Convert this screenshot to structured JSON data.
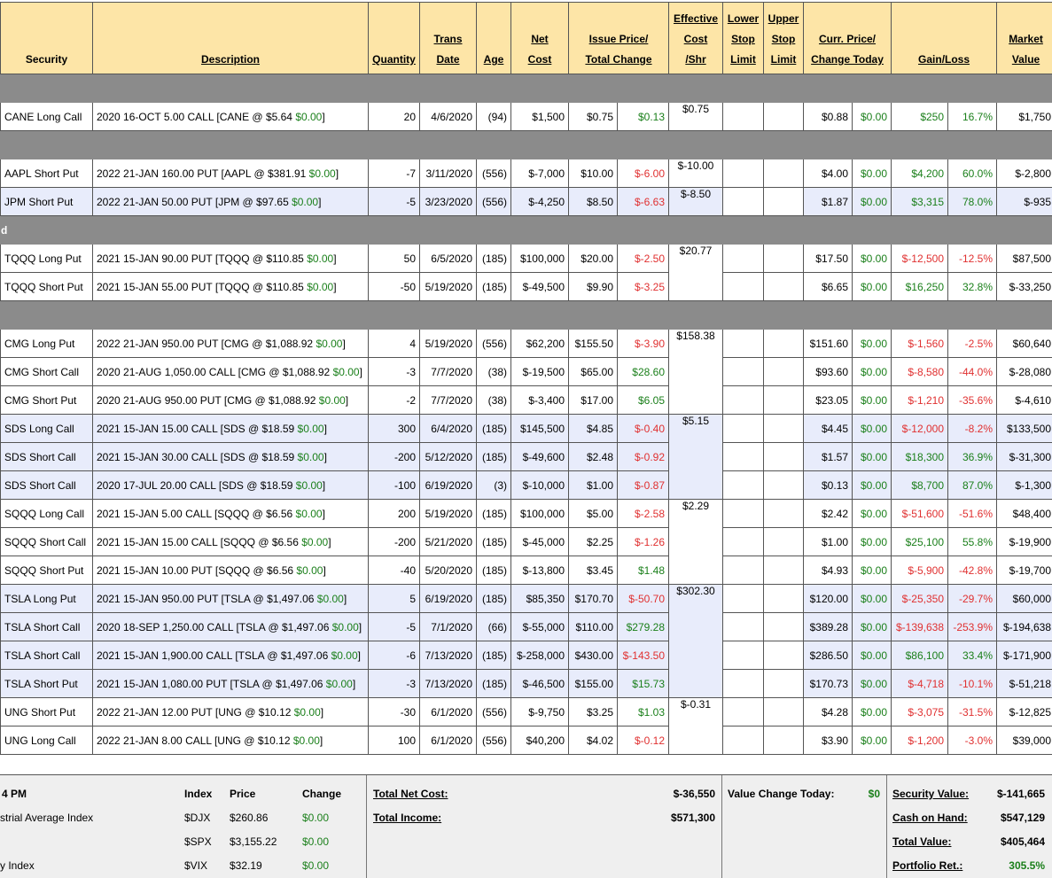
{
  "headers": [
    {
      "label": "Security",
      "underline": false
    },
    {
      "label": "Description",
      "underline": true
    },
    {
      "label": "Quantity",
      "underline": true
    },
    {
      "label": "Trans\nDate",
      "underline": true
    },
    {
      "label": "Age",
      "underline": true
    },
    {
      "label": "Net\nCost",
      "underline": true
    },
    {
      "label": "Issue Price/\nTotal Change",
      "underline": true
    },
    {
      "label": "Effective\nCost\n/Shr",
      "underline": true
    },
    {
      "label": "Lower\nStop\nLimit",
      "underline": true
    },
    {
      "label": "Upper\nStop\nLimit",
      "underline": true
    },
    {
      "label": "Curr. Price/\nChange Today",
      "underline": true
    },
    {
      "label": "Gain/Loss",
      "underline": true
    },
    {
      "label": "Market\nValue",
      "underline": true
    }
  ],
  "sections": [
    {
      "label": "",
      "rows": [
        {
          "sec": "CANE Long Call",
          "desc": "2020 16-OCT 5.00 CALL [CANE @ $5.64 ",
          "desc_chg": "$0.00",
          "qty": "20",
          "date": "4/6/2020",
          "age": "(94)",
          "net": "$1,500",
          "issue": "$0.75",
          "tchg": "$0.13",
          "tchg_c": "g",
          "eff": "$0.75",
          "cur": "$0.88",
          "today": "$0.00",
          "gain": "$250",
          "gain_c": "g",
          "pct": "16.7%",
          "pct_c": "g",
          "mv": "$1,750",
          "alt": false
        }
      ]
    },
    {
      "label": "",
      "rows": [
        {
          "sec": "AAPL Short Put",
          "desc": "2022 21-JAN 160.00 PUT [AAPL @ $381.91 ",
          "desc_chg": "$0.00",
          "qty": "-7",
          "date": "3/11/2020",
          "age": "(556)",
          "net": "$-7,000",
          "issue": "$10.00",
          "tchg": "$-6.00",
          "tchg_c": "red",
          "eff": "$-10.00",
          "cur": "$4.00",
          "today": "$0.00",
          "gain": "$4,200",
          "gain_c": "g",
          "pct": "60.0%",
          "pct_c": "g",
          "mv": "$-2,800",
          "alt": false
        },
        {
          "sec": "JPM Short Put",
          "desc": "2022 21-JAN 50.00 PUT [JPM @ $97.65 ",
          "desc_chg": "$0.00",
          "qty": "-5",
          "date": "3/23/2020",
          "age": "(556)",
          "net": "$-4,250",
          "issue": "$8.50",
          "tchg": "$-6.63",
          "tchg_c": "red",
          "eff": "$-8.50",
          "cur": "$1.87",
          "today": "$0.00",
          "gain": "$3,315",
          "gain_c": "g",
          "pct": "78.0%",
          "pct_c": "g",
          "mv": "$-935",
          "alt": true
        }
      ]
    },
    {
      "label": "d",
      "rows": [
        {
          "sec": "TQQQ Long Put",
          "desc": "2021 15-JAN 90.00 PUT [TQQQ @ $110.85 ",
          "desc_chg": "$0.00",
          "qty": "50",
          "date": "6/5/2020",
          "age": "(185)",
          "net": "$100,000",
          "issue": "$20.00",
          "tchg": "$-2.50",
          "tchg_c": "red",
          "eff": "$20.77",
          "cur": "$17.50",
          "today": "$0.00",
          "gain": "$-12,500",
          "gain_c": "red",
          "pct": "-12.5%",
          "pct_c": "red",
          "mv": "$87,500",
          "alt": false,
          "span": 2
        },
        {
          "sec": "TQQQ Short Put",
          "desc": "2021 15-JAN 55.00 PUT [TQQQ @ $110.85 ",
          "desc_chg": "$0.00",
          "qty": "-50",
          "date": "5/19/2020",
          "age": "(185)",
          "net": "$-49,500",
          "issue": "$9.90",
          "tchg": "$-3.25",
          "tchg_c": "red",
          "eff": null,
          "cur": "$6.65",
          "today": "$0.00",
          "gain": "$16,250",
          "gain_c": "g",
          "pct": "32.8%",
          "pct_c": "g",
          "mv": "$-33,250",
          "alt": false
        }
      ]
    },
    {
      "label": "",
      "rows": [
        {
          "sec": "CMG Long Put",
          "desc": "2022 21-JAN 950.00 PUT [CMG @ $1,088.92 ",
          "desc_chg": "$0.00",
          "qty": "4",
          "date": "5/19/2020",
          "age": "(556)",
          "net": "$62,200",
          "issue": "$155.50",
          "tchg": "$-3.90",
          "tchg_c": "red",
          "eff": "$158.38",
          "cur": "$151.60",
          "today": "$0.00",
          "gain": "$-1,560",
          "gain_c": "red",
          "pct": "-2.5%",
          "pct_c": "red",
          "mv": "$60,640",
          "alt": false,
          "span": 3
        },
        {
          "sec": "CMG Short Call",
          "desc": "2020 21-AUG 1,050.00 CALL [CMG @ $1,088.92 ",
          "desc_chg": "$0.00",
          "qty": "-3",
          "date": "7/7/2020",
          "age": "(38)",
          "net": "$-19,500",
          "issue": "$65.00",
          "tchg": "$28.60",
          "tchg_c": "g",
          "eff": null,
          "cur": "$93.60",
          "today": "$0.00",
          "gain": "$-8,580",
          "gain_c": "red",
          "pct": "-44.0%",
          "pct_c": "red",
          "mv": "$-28,080",
          "alt": false
        },
        {
          "sec": "CMG Short Put",
          "desc": "2020 21-AUG 950.00 PUT [CMG @ $1,088.92 ",
          "desc_chg": "$0.00",
          "qty": "-2",
          "date": "7/7/2020",
          "age": "(38)",
          "net": "$-3,400",
          "issue": "$17.00",
          "tchg": "$6.05",
          "tchg_c": "g",
          "eff": null,
          "cur": "$23.05",
          "today": "$0.00",
          "gain": "$-1,210",
          "gain_c": "red",
          "pct": "-35.6%",
          "pct_c": "red",
          "mv": "$-4,610",
          "alt": false
        },
        {
          "sec": "SDS Long Call",
          "desc": "2021 15-JAN 15.00 CALL [SDS @ $18.59 ",
          "desc_chg": "$0.00",
          "qty": "300",
          "date": "6/4/2020",
          "age": "(185)",
          "net": "$145,500",
          "issue": "$4.85",
          "tchg": "$-0.40",
          "tchg_c": "red",
          "eff": "$5.15",
          "cur": "$4.45",
          "today": "$0.00",
          "gain": "$-12,000",
          "gain_c": "red",
          "pct": "-8.2%",
          "pct_c": "red",
          "mv": "$133,500",
          "alt": true,
          "span": 3
        },
        {
          "sec": "SDS Short Call",
          "desc": "2021 15-JAN 30.00 CALL [SDS @ $18.59 ",
          "desc_chg": "$0.00",
          "qty": "-200",
          "date": "5/12/2020",
          "age": "(185)",
          "net": "$-49,600",
          "issue": "$2.48",
          "tchg": "$-0.92",
          "tchg_c": "red",
          "eff": null,
          "cur": "$1.57",
          "today": "$0.00",
          "gain": "$18,300",
          "gain_c": "g",
          "pct": "36.9%",
          "pct_c": "g",
          "mv": "$-31,300",
          "alt": true
        },
        {
          "sec": "SDS Short Call",
          "desc": "2020 17-JUL 20.00 CALL [SDS @ $18.59 ",
          "desc_chg": "$0.00",
          "qty": "-100",
          "date": "6/19/2020",
          "age": "(3)",
          "net": "$-10,000",
          "issue": "$1.00",
          "tchg": "$-0.87",
          "tchg_c": "red",
          "eff": null,
          "cur": "$0.13",
          "today": "$0.00",
          "gain": "$8,700",
          "gain_c": "g",
          "pct": "87.0%",
          "pct_c": "g",
          "mv": "$-1,300",
          "alt": true
        },
        {
          "sec": "SQQQ Long Call",
          "desc": "2021 15-JAN 5.00 CALL [SQQQ @ $6.56 ",
          "desc_chg": "$0.00",
          "qty": "200",
          "date": "5/19/2020",
          "age": "(185)",
          "net": "$100,000",
          "issue": "$5.00",
          "tchg": "$-2.58",
          "tchg_c": "red",
          "eff": "$2.29",
          "cur": "$2.42",
          "today": "$0.00",
          "gain": "$-51,600",
          "gain_c": "red",
          "pct": "-51.6%",
          "pct_c": "red",
          "mv": "$48,400",
          "alt": false,
          "span": 3
        },
        {
          "sec": "SQQQ Short Call",
          "desc": "2021 15-JAN 15.00 CALL [SQQQ @ $6.56 ",
          "desc_chg": "$0.00",
          "qty": "-200",
          "date": "5/21/2020",
          "age": "(185)",
          "net": "$-45,000",
          "issue": "$2.25",
          "tchg": "$-1.26",
          "tchg_c": "red",
          "eff": null,
          "cur": "$1.00",
          "today": "$0.00",
          "gain": "$25,100",
          "gain_c": "g",
          "pct": "55.8%",
          "pct_c": "g",
          "mv": "$-19,900",
          "alt": false
        },
        {
          "sec": "SQQQ Short Put",
          "desc": "2021 15-JAN 10.00 PUT [SQQQ @ $6.56 ",
          "desc_chg": "$0.00",
          "qty": "-40",
          "date": "5/20/2020",
          "age": "(185)",
          "net": "$-13,800",
          "issue": "$3.45",
          "tchg": "$1.48",
          "tchg_c": "g",
          "eff": null,
          "cur": "$4.93",
          "today": "$0.00",
          "gain": "$-5,900",
          "gain_c": "red",
          "pct": "-42.8%",
          "pct_c": "red",
          "mv": "$-19,700",
          "alt": false
        },
        {
          "sec": "TSLA Long Put",
          "desc": "2021 15-JAN 950.00 PUT [TSLA @ $1,497.06 ",
          "desc_chg": "$0.00",
          "qty": "5",
          "date": "6/19/2020",
          "age": "(185)",
          "net": "$85,350",
          "issue": "$170.70",
          "tchg": "$-50.70",
          "tchg_c": "red",
          "eff": "$302.30",
          "cur": "$120.00",
          "today": "$0.00",
          "gain": "$-25,350",
          "gain_c": "red",
          "pct": "-29.7%",
          "pct_c": "red",
          "mv": "$60,000",
          "alt": true,
          "span": 4
        },
        {
          "sec": "TSLA Short Call",
          "desc": "2020 18-SEP 1,250.00 CALL [TSLA @ $1,497.06 ",
          "desc_chg": "$0.00",
          "qty": "-5",
          "date": "7/1/2020",
          "age": "(66)",
          "net": "$-55,000",
          "issue": "$110.00",
          "tchg": "$279.28",
          "tchg_c": "g",
          "eff": null,
          "cur": "$389.28",
          "today": "$0.00",
          "gain": "$-139,638",
          "gain_c": "red",
          "pct": "-253.9%",
          "pct_c": "red",
          "mv": "$-194,638",
          "alt": true
        },
        {
          "sec": "TSLA Short Call",
          "desc": "2021 15-JAN 1,900.00 CALL [TSLA @ $1,497.06 ",
          "desc_chg": "$0.00",
          "qty": "-6",
          "date": "7/13/2020",
          "age": "(185)",
          "net": "$-258,000",
          "issue": "$430.00",
          "tchg": "$-143.50",
          "tchg_c": "red",
          "eff": null,
          "cur": "$286.50",
          "today": "$0.00",
          "gain": "$86,100",
          "gain_c": "g",
          "pct": "33.4%",
          "pct_c": "g",
          "mv": "$-171,900",
          "alt": true
        },
        {
          "sec": "TSLA Short Put",
          "desc": "2021 15-JAN 1,080.00 PUT [TSLA @ $1,497.06 ",
          "desc_chg": "$0.00",
          "qty": "-3",
          "date": "7/13/2020",
          "age": "(185)",
          "net": "$-46,500",
          "issue": "$155.00",
          "tchg": "$15.73",
          "tchg_c": "g",
          "eff": null,
          "cur": "$170.73",
          "today": "$0.00",
          "gain": "$-4,718",
          "gain_c": "red",
          "pct": "-10.1%",
          "pct_c": "red",
          "mv": "$-51,218",
          "alt": true
        },
        {
          "sec": "UNG Short Put",
          "desc": "2022 21-JAN 12.00 PUT [UNG @ $10.12 ",
          "desc_chg": "$0.00",
          "qty": "-30",
          "date": "6/1/2020",
          "age": "(556)",
          "net": "$-9,750",
          "issue": "$3.25",
          "tchg": "$1.03",
          "tchg_c": "g",
          "eff": "$-0.31",
          "cur": "$4.28",
          "today": "$0.00",
          "gain": "$-3,075",
          "gain_c": "red",
          "pct": "-31.5%",
          "pct_c": "red",
          "mv": "$-12,825",
          "alt": false,
          "span": 2
        },
        {
          "sec": "UNG Long Call",
          "desc": "2022 21-JAN 8.00 CALL [UNG @ $10.12 ",
          "desc_chg": "$0.00",
          "qty": "100",
          "date": "6/1/2020",
          "age": "(556)",
          "net": "$40,200",
          "issue": "$4.02",
          "tchg": "$-0.12",
          "tchg_c": "red",
          "eff": null,
          "cur": "$3.90",
          "today": "$0.00",
          "gain": "$-1,200",
          "gain_c": "red",
          "pct": "-3.0%",
          "pct_c": "red",
          "mv": "$39,000",
          "alt": false
        }
      ]
    }
  ],
  "footer": {
    "time_label": "4 PM",
    "index_headers": {
      "index": "Index",
      "price": "Price",
      "change": "Change"
    },
    "indices": [
      {
        "name": "strial Average Index",
        "sym": "$DJX",
        "price": "$260.86",
        "change": "$0.00"
      },
      {
        "name": "",
        "sym": "$SPX",
        "price": "$3,155.22",
        "change": "$0.00"
      },
      {
        "name": "y Index",
        "sym": "$VIX",
        "price": "$32.19",
        "change": "$0.00"
      }
    ],
    "total_net_cost_label": "Total Net Cost:",
    "total_net_cost": "$-36,550",
    "total_income_label": "Total Income:",
    "total_income": "$571,300",
    "value_change_label": "Value Change Today:",
    "value_change": "$0",
    "security_value_label": "Security Value:",
    "security_value": "$-141,665",
    "cash_label": "Cash on Hand:",
    "cash": "$547,129",
    "total_value_label": "Total Value:",
    "total_value": "$405,464",
    "portfolio_ret_label": "Portfolio Ret.:",
    "portfolio_ret": "305.5%"
  }
}
